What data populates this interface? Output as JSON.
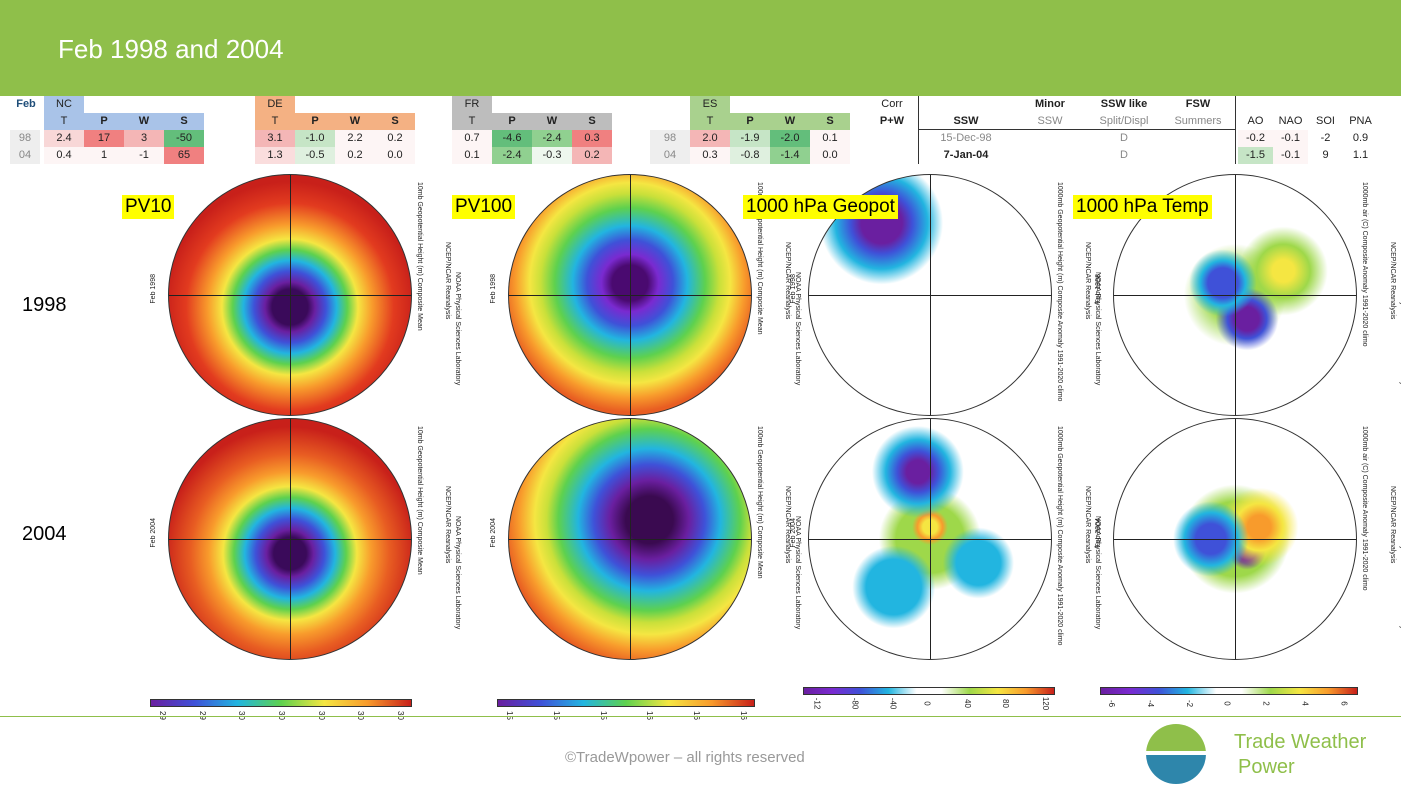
{
  "title": "Feb 1998 and 2004",
  "table": {
    "feb_label": "Feb",
    "regions": [
      {
        "name": "NC",
        "cols": [
          "T",
          "P",
          "W",
          "S"
        ],
        "rows": [
          [
            "2.4",
            "17",
            "3",
            "-50"
          ],
          [
            "0.4",
            "1",
            "-1",
            "65"
          ]
        ]
      },
      {
        "name": "DE",
        "cols": [
          "T",
          "P",
          "W",
          "S"
        ],
        "rows": [
          [
            "3.1",
            "-1.0",
            "2.2",
            "0.2"
          ],
          [
            "1.3",
            "-0.5",
            "0.2",
            "0.0"
          ]
        ]
      },
      {
        "name": "FR",
        "cols": [
          "T",
          "P",
          "W",
          "S"
        ],
        "rows": [
          [
            "0.7",
            "-4.6",
            "-2.4",
            "0.3"
          ],
          [
            "0.1",
            "-2.4",
            "-0.3",
            "0.2"
          ]
        ]
      },
      {
        "name": "ES",
        "cols": [
          "T",
          "P",
          "W",
          "S"
        ],
        "rows": [
          [
            "2.0",
            "-1.9",
            "-2.0",
            "0.1"
          ],
          [
            "0.3",
            "-0.8",
            "-1.4",
            "0.0"
          ]
        ]
      }
    ],
    "years": [
      "98",
      "04"
    ],
    "corr_label": "Corr",
    "corr_sub": "P+W",
    "ssw": {
      "headers": [
        "SSW",
        "Minor",
        "SSW like",
        "FSW"
      ],
      "subheaders": [
        "",
        "SSW",
        "Split/Displ",
        "Summers"
      ],
      "rows": [
        [
          "15-Dec-98",
          "",
          "D",
          ""
        ],
        [
          "7-Jan-04",
          "",
          "D",
          ""
        ]
      ]
    },
    "indices": {
      "headers": [
        "AO",
        "NAO",
        "SOI",
        "PNA"
      ],
      "rows": [
        [
          "-0.2",
          "-0.1",
          "-2",
          "0.9"
        ],
        [
          "-1.5",
          "-0.1",
          "9",
          "1.1"
        ]
      ]
    }
  },
  "panels": {
    "labels": [
      "PV10",
      "PV100",
      "1000 hPa Geopot",
      "1000 hPa Temp"
    ],
    "years": [
      "1998",
      "2004"
    ],
    "feb_labels": [
      "Feb 1998",
      "Feb 2004"
    ],
    "side_texts": [
      "10mb Geopotential Height (m) Composite Mean",
      "100mb Geopotential Height (m) Composite Mean",
      "1000mb Geopotential Height (m) Composite Anomaly 1991-2020 climo",
      "1000mb air (C) Composite Anomaly 1991-2020 climo"
    ],
    "credit": "NCEP/NCAR Reanalysis",
    "lab": "NOAA Physical Sciences Laboratory"
  },
  "colorbars": [
    {
      "ticks": [
        "29",
        "29",
        "30",
        "30",
        "30",
        "30",
        "30"
      ]
    },
    {
      "ticks": [
        "15",
        "15",
        "15",
        "16",
        "16",
        "16"
      ]
    },
    {
      "ticks": [
        "-12",
        "-80",
        "-40",
        "0",
        "40",
        "80",
        "120"
      ]
    },
    {
      "ticks": [
        "-6",
        "-4",
        "-2",
        "0",
        "2",
        "4",
        "6"
      ]
    }
  ],
  "footer": {
    "copyright": "©TradeWpower – all rights reserved",
    "logo_line1": "Trade Weather",
    "logo_line2": "Power"
  }
}
